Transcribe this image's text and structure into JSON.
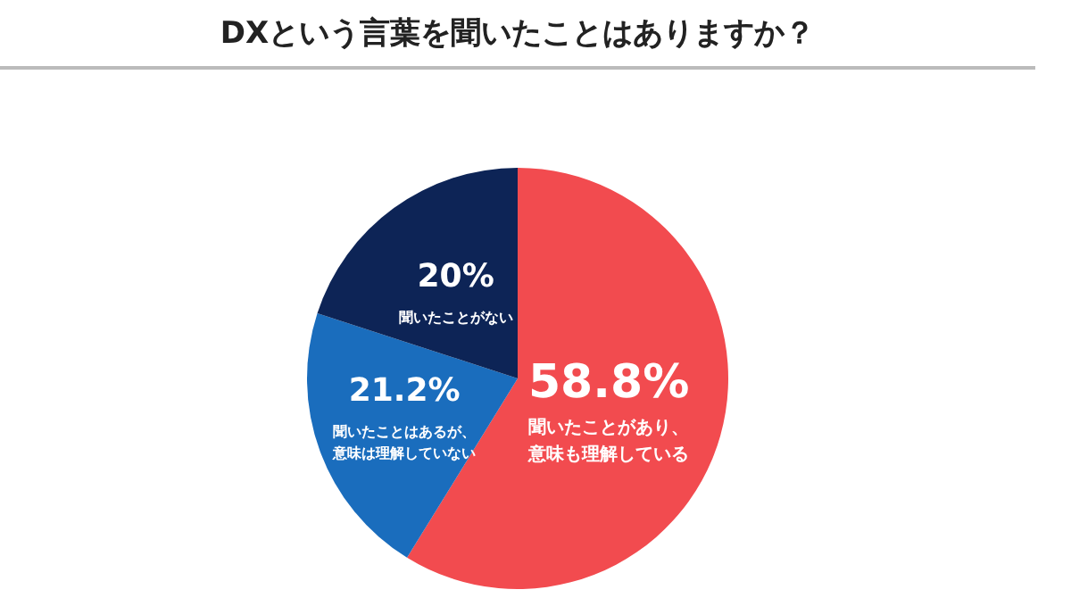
{
  "chart_data": {
    "type": "pie",
    "title": "DXという言葉を聞いたことはありますか？",
    "categories": [
      "聞いたことがあり、意味も理解している",
      "聞いたことはあるが、意味は理解していない",
      "聞いたことがない"
    ],
    "values": [
      58.8,
      21.2,
      20
    ],
    "value_labels": [
      "58.8%",
      "21.2%",
      "20%"
    ],
    "colors": [
      "#f24b4f",
      "#1a6dbd",
      "#0d2456"
    ]
  }
}
